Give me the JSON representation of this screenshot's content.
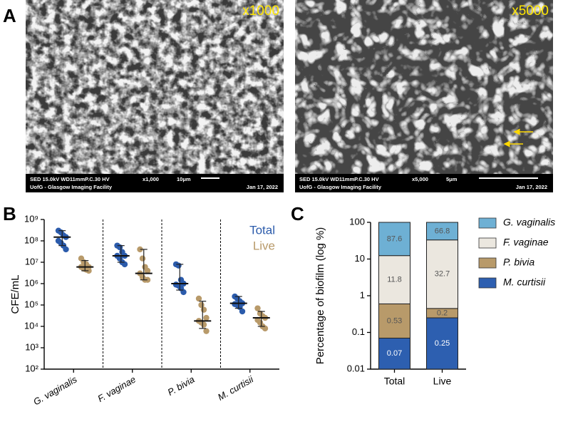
{
  "panel_labels": [
    "A",
    "B",
    "C"
  ],
  "images": [
    {
      "magnification": "x1000",
      "detector": "SED 15.0kV WD11mmP.C.30 HV",
      "mag_info": "x1,000",
      "scale": "10μm",
      "facility": "UofG - Glasgow Imaging Facility",
      "date": "Jan 17, 2022"
    },
    {
      "magnification": "x5000",
      "detector": "SED 15.0kV WD11mmP.C.30 HV",
      "mag_info": "x5,000",
      "scale": "5μm",
      "facility": "UofG - Glasgow Imaging Facility",
      "date": "Jan 17, 2022"
    }
  ],
  "chart_data": [
    {
      "type": "scatter",
      "ylabel": "CFE/mL",
      "log_scale": true,
      "legend": "upper right",
      "categories": [
        "G. vaginalis",
        "F. vaginae",
        "P. bivia",
        "M. curtisii"
      ],
      "ylim": [
        100,
        1000000000
      ],
      "yticks": [
        {
          "value": 100,
          "label": "10²"
        },
        {
          "value": 1000,
          "label": "10³"
        },
        {
          "value": 10000,
          "label": "10⁴"
        },
        {
          "value": 100000,
          "label": "10⁵"
        },
        {
          "value": 1000000,
          "label": "10⁶"
        },
        {
          "value": 10000000,
          "label": "10⁷"
        },
        {
          "value": 100000000,
          "label": "10⁸"
        },
        {
          "value": 1000000000,
          "label": "10⁹"
        }
      ],
      "series": [
        {
          "name": "Total",
          "color": "#2b5bab",
          "values": [
            [
              300000000,
              250000000,
              180000000,
              150000000,
              100000000,
              80000000,
              60000000,
              40000000
            ],
            [
              60000000,
              50000000,
              30000000,
              20000000,
              20000000,
              15000000,
              10000000,
              8000000
            ],
            [
              8000000,
              7000000,
              1500000,
              1000000,
              900000,
              800000,
              600000,
              400000
            ],
            [
              250000,
              200000,
              150000,
              120000,
              110000,
              100000,
              80000,
              50000
            ]
          ],
          "medians": [
            150000000,
            20000000,
            1000000,
            120000
          ],
          "whisker_low": [
            60000000,
            10000000,
            500000,
            70000
          ],
          "whisker_high": [
            300000000,
            60000000,
            8000000,
            250000
          ]
        },
        {
          "name": "Live",
          "color": "#b89a6a",
          "values": [
            [
              15000000,
              10000000,
              8000000,
              6000000,
              6000000,
              5000000,
              4500000,
              4000000
            ],
            [
              40000000,
              15000000,
              6000000,
              4000000,
              3000000,
              2000000,
              1500000,
              1500000
            ],
            [
              200000,
              100000,
              60000,
              25000,
              18000,
              15000,
              12000,
              6000
            ],
            [
              70000,
              40000,
              30000,
              25000,
              20000,
              15000,
              10000,
              8000
            ]
          ],
          "medians": [
            6000000,
            3000000,
            18000,
            25000
          ],
          "whisker_low": [
            4000000,
            1500000,
            8000,
            10000
          ],
          "whisker_high": [
            12000000,
            40000000,
            150000,
            50000
          ]
        }
      ]
    },
    {
      "type": "stacked_bar",
      "ylabel": "Percentage of biofilm (log %)",
      "log_scale": true,
      "legend": "right",
      "categories": [
        "Total",
        "Live"
      ],
      "ylim": [
        0.01,
        100
      ],
      "yticks": [
        0.01,
        0.1,
        1,
        10,
        100
      ],
      "series": [
        {
          "name": "M. curtisii",
          "color": "#2d5fb0",
          "values": [
            0.07,
            0.25
          ]
        },
        {
          "name": "P. bivia",
          "color": "#b89a6a",
          "values": [
            0.53,
            0.2
          ]
        },
        {
          "name": "F. vaginae",
          "color": "#ebe7df",
          "values": [
            11.8,
            32.7
          ]
        },
        {
          "name": "G. vaginalis",
          "color": "#6eb0d4",
          "values": [
            87.6,
            66.8
          ]
        }
      ]
    }
  ]
}
